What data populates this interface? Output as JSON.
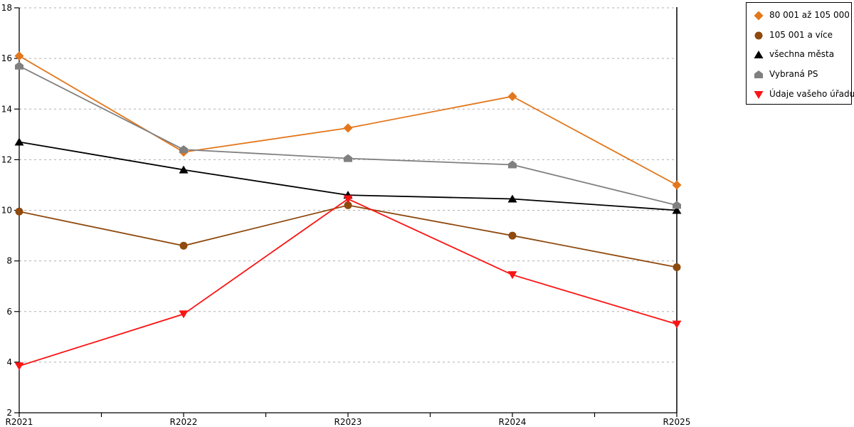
{
  "chart_data": {
    "type": "line",
    "title": "",
    "x": [
      "R2021",
      "R2022",
      "R2023",
      "R2024",
      "R2025"
    ],
    "series": [
      {
        "name": "80 001 až 105 000",
        "marker": "diamond",
        "color": "#E2771C",
        "values": [
          16.1,
          12.3,
          13.25,
          14.5,
          11.0
        ]
      },
      {
        "name": "105 001 a více",
        "marker": "circle",
        "color": "#8F4A0F",
        "values": [
          9.95,
          8.6,
          10.2,
          9.0,
          7.75
        ]
      },
      {
        "name": "všechna města",
        "marker": "triangle-up",
        "color": "#000000",
        "values": [
          12.7,
          11.6,
          10.6,
          10.45,
          10.0
        ]
      },
      {
        "name": "Vybraná PS",
        "marker": "pentagon",
        "color": "#808080",
        "values": [
          15.7,
          12.4,
          12.05,
          11.8,
          10.2
        ]
      },
      {
        "name": "Údaje vašeho úřadu",
        "marker": "triangle-down",
        "color": "#FA1414",
        "values": [
          3.85,
          5.9,
          10.45,
          7.45,
          5.5
        ]
      }
    ],
    "ylim": [
      2,
      18
    ],
    "y_ticks": [
      2,
      4,
      6,
      8,
      10,
      12,
      14,
      16,
      18
    ],
    "xlabel": "",
    "ylabel": "",
    "grid": "horizontal-dashed",
    "gridline_color": "#AFAFAF",
    "axis_color": "#000000",
    "legend_position": "top-right"
  }
}
